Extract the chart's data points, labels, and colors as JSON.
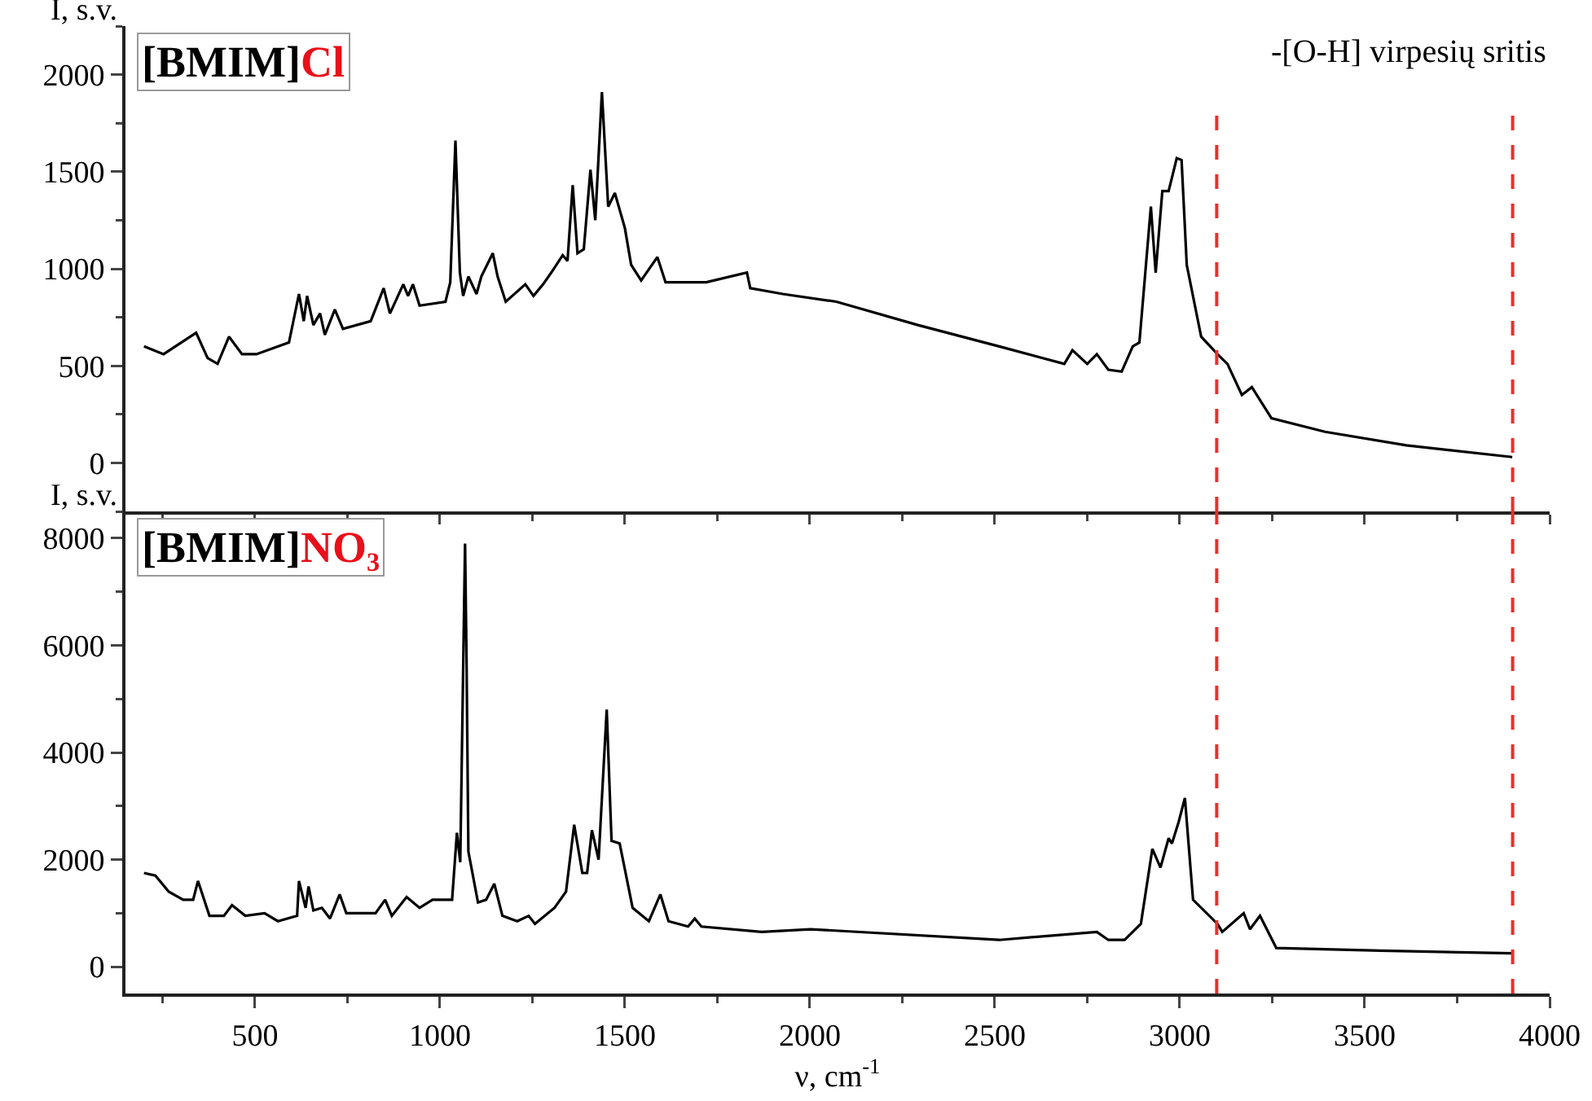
{
  "chart_data": [
    {
      "type": "line",
      "title": "[BMIM]Cl",
      "ylabel": "I, s.v.",
      "tick_labels": "y",
      "xlim": [
        150,
        4000
      ],
      "xticks": [
        500,
        1000,
        1500,
        2000,
        2500,
        3000,
        3500,
        4000
      ],
      "ylim": [
        -250,
        2250
      ],
      "yticks": [
        0,
        500,
        1000,
        1500,
        2000
      ],
      "annotations": [
        "-[O-H] virpesių sritis"
      ],
      "ref_lines": [
        {
          "axis": "x",
          "value": 3100,
          "color": "#e8302e",
          "line_style": "dashed"
        },
        {
          "axis": "x",
          "value": 3900,
          "color": "#e8302e",
          "line_style": "dashed"
        }
      ],
      "x": [
        200,
        253,
        341,
        372,
        399,
        430,
        465,
        504,
        592,
        619,
        632,
        641,
        658,
        676,
        689,
        716,
        738,
        813,
        848,
        865,
        901,
        914,
        927,
        945,
        1015,
        1028,
        1042,
        1054,
        1063,
        1077,
        1099,
        1112,
        1143,
        1156,
        1178,
        1231,
        1253,
        1279,
        1301,
        1332,
        1345,
        1359,
        1372,
        1389,
        1407,
        1420,
        1438,
        1455,
        1473,
        1500,
        1517,
        1544,
        1588,
        1610,
        1720,
        1830,
        1839,
        1927,
        2072,
        2292,
        2512,
        2688,
        2710,
        2750,
        2776,
        2807,
        2843,
        2873,
        2891,
        2922,
        2935,
        2953,
        2970,
        2992,
        3005,
        3019,
        3058,
        3102,
        3129,
        3168,
        3195,
        3248,
        3393,
        3613,
        3899
      ],
      "series": [
        {
          "color": "#000000",
          "values": [
            600,
            560,
            670,
            540,
            510,
            650,
            560,
            560,
            620,
            870,
            730,
            860,
            710,
            770,
            660,
            790,
            690,
            730,
            900,
            770,
            920,
            860,
            920,
            810,
            830,
            930,
            1660,
            980,
            860,
            960,
            870,
            960,
            1080,
            960,
            830,
            920,
            860,
            920,
            980,
            1070,
            1040,
            1430,
            1080,
            1100,
            1510,
            1250,
            1910,
            1320,
            1390,
            1210,
            1020,
            940,
            1060,
            930,
            930,
            980,
            900,
            870,
            830,
            710,
            600,
            510,
            580,
            510,
            560,
            480,
            470,
            600,
            620,
            1320,
            980,
            1400,
            1400,
            1570,
            1560,
            1020,
            650,
            560,
            510,
            350,
            390,
            230,
            160,
            90,
            30
          ]
        }
      ]
    },
    {
      "type": "line",
      "title": "[BMIM]NO₃",
      "ylabel": "I, s.v.",
      "xlabel": "ν, cm$^{-1}$",
      "xlim": [
        150,
        4000
      ],
      "xticks": [
        500,
        1000,
        1500,
        2000,
        2500,
        3000,
        3500,
        4000
      ],
      "ylim": [
        -500,
        8500
      ],
      "yticks": [
        0,
        2000,
        4000,
        6000,
        8000
      ],
      "ref_lines": [
        {
          "axis": "x",
          "value": 3100,
          "color": "#e8302e",
          "line_style": "dashed"
        },
        {
          "axis": "x",
          "value": 3900,
          "color": "#e8302e",
          "line_style": "dashed"
        }
      ],
      "x": [
        200,
        231,
        267,
        306,
        333,
        346,
        377,
        416,
        438,
        474,
        526,
        562,
        614,
        619,
        637,
        645,
        658,
        681,
        703,
        729,
        747,
        826,
        852,
        870,
        910,
        945,
        980,
        1033,
        1046,
        1055,
        1068,
        1072,
        1077,
        1103,
        1125,
        1147,
        1169,
        1209,
        1240,
        1257,
        1310,
        1341,
        1363,
        1385,
        1398,
        1411,
        1429,
        1451,
        1464,
        1486,
        1521,
        1565,
        1596,
        1618,
        1671,
        1689,
        1707,
        1870,
        2002,
        2512,
        2776,
        2807,
        2851,
        2895,
        2926,
        2948,
        2970,
        2979,
        2997,
        3014,
        3036,
        3102,
        3115,
        3173,
        3190,
        3217,
        3261,
        3543,
        3899
      ],
      "series": [
        {
          "color": "#000000",
          "values": [
            1750,
            1700,
            1400,
            1250,
            1250,
            1600,
            950,
            950,
            1150,
            950,
            1000,
            850,
            950,
            1600,
            1100,
            1500,
            1050,
            1100,
            900,
            1350,
            1000,
            1000,
            1250,
            950,
            1300,
            1100,
            1250,
            1250,
            2500,
            1950,
            7900,
            5750,
            2150,
            1200,
            1250,
            1550,
            950,
            850,
            950,
            800,
            1100,
            1400,
            2650,
            1750,
            1750,
            2550,
            2000,
            4800,
            2350,
            2300,
            1100,
            850,
            1350,
            850,
            750,
            900,
            750,
            650,
            700,
            500,
            650,
            500,
            500,
            800,
            2200,
            1850,
            2400,
            2300,
            2700,
            3150,
            1250,
            800,
            650,
            1000,
            700,
            950,
            350,
            300,
            250
          ]
        }
      ]
    }
  ]
}
